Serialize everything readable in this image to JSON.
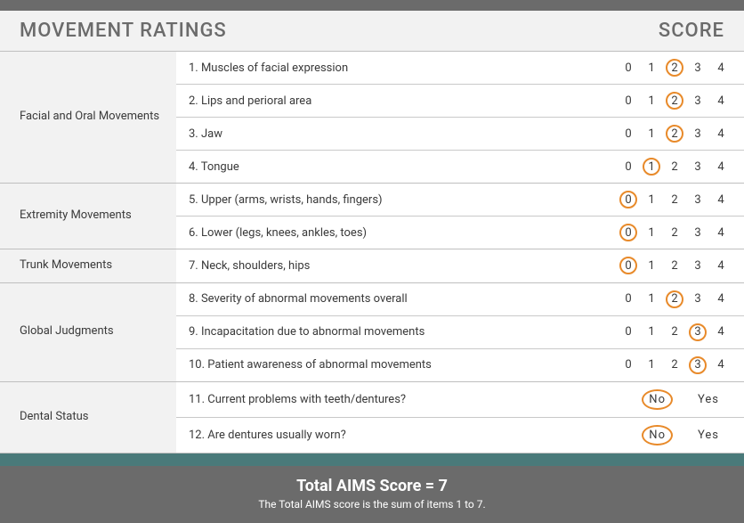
{
  "header": {
    "title": "MOVEMENT RATINGS",
    "score_label": "SCORE"
  },
  "scale_options": [
    "0",
    "1",
    "2",
    "3",
    "4"
  ],
  "yn_options": [
    "No",
    "Yes"
  ],
  "sections": [
    {
      "label": "Facial and Oral Movements",
      "rows": [
        {
          "label": "1.  Muscles of facial expression",
          "type": "scale",
          "selected": "2"
        },
        {
          "label": "2.  Lips and perioral area",
          "type": "scale",
          "selected": "2"
        },
        {
          "label": "3.  Jaw",
          "type": "scale",
          "selected": "2"
        },
        {
          "label": "4.  Tongue",
          "type": "scale",
          "selected": "1"
        }
      ]
    },
    {
      "label": "Extremity Movements",
      "rows": [
        {
          "label": "5.  Upper (arms, wrists, hands, fingers)",
          "type": "scale",
          "selected": "0"
        },
        {
          "label": "6.  Lower (legs, knees, ankles, toes)",
          "type": "scale",
          "selected": "0"
        }
      ]
    },
    {
      "label": "Trunk Movements",
      "rows": [
        {
          "label": "7.  Neck, shoulders, hips",
          "type": "scale",
          "selected": "0"
        }
      ]
    },
    {
      "label": "Global Judgments",
      "rows": [
        {
          "label": "8.  Severity of abnormal movements overall",
          "type": "scale",
          "selected": "2"
        },
        {
          "label": "9.  Incapacitation due to abnormal movements",
          "type": "scale",
          "selected": "3"
        },
        {
          "label": "10. Patient awareness of abnormal movements",
          "type": "scale",
          "selected": "3"
        }
      ]
    },
    {
      "label": "Dental Status",
      "rows": [
        {
          "label": "11.  Current problems with teeth/dentures?",
          "type": "yn",
          "selected": "No"
        },
        {
          "label": "12.  Are dentures usually worn?",
          "type": "yn",
          "selected": "No"
        }
      ]
    }
  ],
  "footer": {
    "title": "Total AIMS Score = 7",
    "sub": "The Total AIMS score is the sum of items 1 to 7."
  },
  "colors": {
    "topbar": "#6b6b6b",
    "header_bg": "#f2f2f2",
    "header_text": "#6b6b6b",
    "section_bg": "#f2f2f2",
    "row_bg": "#ffffff",
    "border": "#bfbfbf",
    "row_border": "#c9c9c9",
    "text": "#3a3a3a",
    "circle": "#e88a2a",
    "tealbar": "#4a7a7a",
    "footer_bg": "#6b6b6b",
    "footer_text": "#ffffff"
  }
}
